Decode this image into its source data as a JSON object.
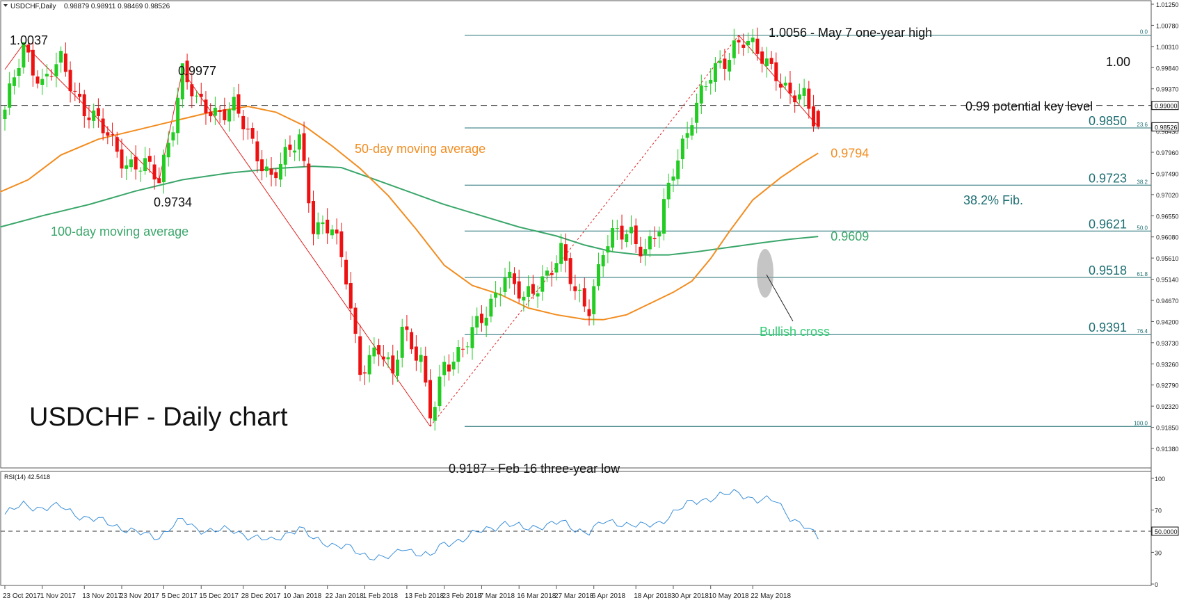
{
  "chart_data": [
    {
      "type": "candlestick",
      "header": {
        "symbol": "USDCHF,Daily",
        "ohlc": "0.98879 0.98911 0.98469 0.98526"
      },
      "title": "USDCHF - Daily chart",
      "x_tick_labels": [
        "23 Oct 2017",
        "1 Nov 2017",
        "13 Nov 2017",
        "23 Nov 2017",
        "5 Dec 2017",
        "15 Dec 2017",
        "28 Dec 2017",
        "10 Jan 2018",
        "22 Jan 2018",
        "1 Feb 2018",
        "13 Feb 2018",
        "23 Feb 2018",
        "7 Mar 2018",
        "16 Mar 2018",
        "27 Mar 2018",
        "6 Apr 2018",
        "18 Apr 2018",
        "30 Apr 2018",
        "10 May 2018",
        "22 May 2018"
      ],
      "y_tick_labels": [
        "1.01250",
        "1.00780",
        "1.00310",
        "0.99840",
        "0.99370",
        "0.98430",
        "0.97960",
        "0.97490",
        "0.97020",
        "0.96550",
        "0.96080",
        "0.95610",
        "0.95140",
        "0.94670",
        "0.94200",
        "0.93730",
        "0.93260",
        "0.92790",
        "0.92320",
        "0.91850",
        "0.91380"
      ],
      "ylim": [
        0.9138,
        1.0125
      ],
      "current_price_label": "0.98526",
      "key_level_label": "0.99000",
      "series": [
        {
          "name": "50-day moving average",
          "color": "#f28c1f",
          "end_label": "0.9794"
        },
        {
          "name": "100-day moving average",
          "color": "#3aa66a",
          "end_label": "0.9609"
        }
      ],
      "bull_color": "#22cc22",
      "bear_color": "#ee1111",
      "fib_levels": [
        {
          "ratio": "0.0",
          "price": 1.0056,
          "label": ""
        },
        {
          "ratio": "23.6",
          "price": 0.985,
          "label": "0.9850"
        },
        {
          "ratio": "38.2",
          "price": 0.9723,
          "label": "0.9723"
        },
        {
          "ratio": "50.0",
          "price": 0.9621,
          "label": "0.9621"
        },
        {
          "ratio": "61.8",
          "price": 0.9518,
          "label": "0.9518"
        },
        {
          "ratio": "76.4",
          "price": 0.9391,
          "label": "0.9391"
        },
        {
          "ratio": "100.0",
          "price": 0.9187,
          "label": ""
        }
      ],
      "annotations": {
        "high_2017": "1.0037",
        "dec_high": "0.9977",
        "nov_low": "0.9734",
        "may_high": "1.0056 - May 7 one-year high",
        "feb_low": "0.9187 - Feb 16 three-year low",
        "key_level": "0.99 potential key level",
        "level_100": "1.00",
        "fib_label": "38.2% Fib.",
        "cross_label": "Bullish cross"
      }
    },
    {
      "type": "line",
      "name": "RSI(14) 42.5418",
      "ylim": [
        0,
        100
      ],
      "y_tick_labels": [
        "100",
        "70",
        "50.0000",
        "30",
        "0"
      ],
      "color": "#3b8fd9"
    }
  ]
}
